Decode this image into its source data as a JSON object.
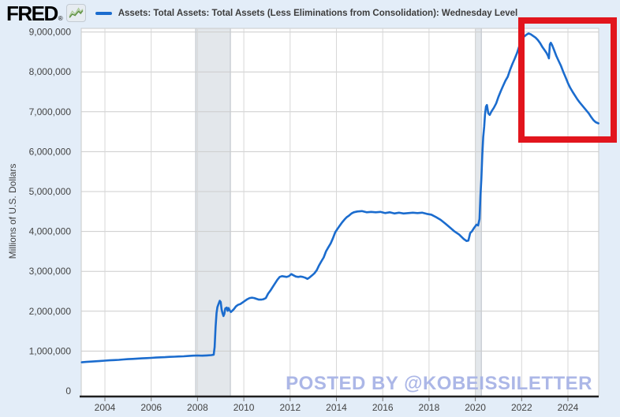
{
  "header": {
    "logo_text": "FRED",
    "registered_mark": "®",
    "series_legend": "Assets: Total Assets: Total Assets (Less Eliminations from Consolidation): Wednesday Level"
  },
  "watermark": {
    "text": "POSTED BY @KOBEISSILETTER",
    "color": "#a8b4e6"
  },
  "annotation": {
    "shape": "rectangle",
    "color": "#e2151d",
    "note": "highlights 2022-2025 balance sheet decline"
  },
  "colors": {
    "background": "#e3edf8",
    "plot_background": "#ffffff",
    "series_line": "#1b6cce",
    "recession_band": "#e3e7eb",
    "recession_band_edge": "#b9bfc6",
    "gridline": "#cccccc",
    "axis_line": "#1f1f1f",
    "tick_label": "#444444",
    "sparkline_green": "#5f9142"
  },
  "chart_data": {
    "type": "line",
    "title": "Assets: Total Assets: Total Assets (Less Eliminations from Consolidation): Wednesday Level",
    "xlabel": "",
    "ylabel": "Millions of U.S. Dollars",
    "x_range": [
      2003.0,
      2025.36
    ],
    "ylim": [
      0,
      9000000
    ],
    "grid": true,
    "legend_position": "top-left",
    "x_ticks": [
      2004,
      2006,
      2008,
      2010,
      2012,
      2014,
      2016,
      2018,
      2020,
      2022,
      2024
    ],
    "y_ticks": [
      [
        0,
        "0"
      ],
      [
        1000000,
        "1,000,000"
      ],
      [
        2000000,
        "2,000,000"
      ],
      [
        3000000,
        "3,000,000"
      ],
      [
        4000000,
        "4,000,000"
      ],
      [
        5000000,
        "5,000,000"
      ],
      [
        6000000,
        "6,000,000"
      ],
      [
        7000000,
        "7,000,000"
      ],
      [
        8000000,
        "8,000,000"
      ],
      [
        9000000,
        "9,000,000"
      ]
    ],
    "recession_bands": [
      {
        "start": 2007.92,
        "end": 2009.42
      },
      {
        "start": 2020.0,
        "end": 2020.26
      }
    ],
    "series": [
      {
        "name": "Assets: Total Assets: Total Assets (Less Eliminations from Consolidation): Wednesday Level",
        "color": "#1b6cce",
        "units": "Millions of U.S. Dollars",
        "points": [
          [
            2003.0,
            720000
          ],
          [
            2003.2,
            730000
          ],
          [
            2003.4,
            738000
          ],
          [
            2003.6,
            745000
          ],
          [
            2003.8,
            752000
          ],
          [
            2004.0,
            760000
          ],
          [
            2004.2,
            768000
          ],
          [
            2004.4,
            774000
          ],
          [
            2004.6,
            780000
          ],
          [
            2004.8,
            790000
          ],
          [
            2005.0,
            798000
          ],
          [
            2005.2,
            805000
          ],
          [
            2005.4,
            812000
          ],
          [
            2005.6,
            818000
          ],
          [
            2005.8,
            825000
          ],
          [
            2006.0,
            830000
          ],
          [
            2006.2,
            838000
          ],
          [
            2006.4,
            843000
          ],
          [
            2006.6,
            848000
          ],
          [
            2006.8,
            855000
          ],
          [
            2007.0,
            860000
          ],
          [
            2007.2,
            865000
          ],
          [
            2007.4,
            870000
          ],
          [
            2007.6,
            878000
          ],
          [
            2007.8,
            885000
          ],
          [
            2008.0,
            890000
          ],
          [
            2008.2,
            885000
          ],
          [
            2008.4,
            892000
          ],
          [
            2008.6,
            900000
          ],
          [
            2008.7,
            910000
          ],
          [
            2008.74,
            1100000
          ],
          [
            2008.78,
            1600000
          ],
          [
            2008.82,
            1950000
          ],
          [
            2008.86,
            2100000
          ],
          [
            2008.92,
            2200000
          ],
          [
            2008.96,
            2260000
          ],
          [
            2009.0,
            2230000
          ],
          [
            2009.04,
            2050000
          ],
          [
            2009.08,
            1950000
          ],
          [
            2009.12,
            1880000
          ],
          [
            2009.16,
            1930000
          ],
          [
            2009.2,
            2070000
          ],
          [
            2009.26,
            2090000
          ],
          [
            2009.3,
            2010000
          ],
          [
            2009.34,
            2080000
          ],
          [
            2009.38,
            2030000
          ],
          [
            2009.44,
            1980000
          ],
          [
            2009.5,
            2010000
          ],
          [
            2009.58,
            2060000
          ],
          [
            2009.66,
            2120000
          ],
          [
            2009.75,
            2160000
          ],
          [
            2009.85,
            2180000
          ],
          [
            2009.95,
            2220000
          ],
          [
            2010.05,
            2260000
          ],
          [
            2010.15,
            2300000
          ],
          [
            2010.25,
            2330000
          ],
          [
            2010.35,
            2340000
          ],
          [
            2010.45,
            2330000
          ],
          [
            2010.55,
            2310000
          ],
          [
            2010.65,
            2290000
          ],
          [
            2010.75,
            2290000
          ],
          [
            2010.85,
            2300000
          ],
          [
            2010.95,
            2330000
          ],
          [
            2011.05,
            2440000
          ],
          [
            2011.15,
            2520000
          ],
          [
            2011.25,
            2610000
          ],
          [
            2011.35,
            2700000
          ],
          [
            2011.45,
            2790000
          ],
          [
            2011.55,
            2860000
          ],
          [
            2011.65,
            2880000
          ],
          [
            2011.75,
            2870000
          ],
          [
            2011.85,
            2860000
          ],
          [
            2011.95,
            2880000
          ],
          [
            2012.05,
            2930000
          ],
          [
            2012.15,
            2900000
          ],
          [
            2012.25,
            2870000
          ],
          [
            2012.35,
            2860000
          ],
          [
            2012.45,
            2870000
          ],
          [
            2012.55,
            2860000
          ],
          [
            2012.65,
            2840000
          ],
          [
            2012.75,
            2810000
          ],
          [
            2012.85,
            2850000
          ],
          [
            2012.95,
            2900000
          ],
          [
            2013.05,
            2950000
          ],
          [
            2013.15,
            3030000
          ],
          [
            2013.25,
            3150000
          ],
          [
            2013.35,
            3250000
          ],
          [
            2013.45,
            3350000
          ],
          [
            2013.55,
            3500000
          ],
          [
            2013.65,
            3600000
          ],
          [
            2013.75,
            3700000
          ],
          [
            2013.85,
            3830000
          ],
          [
            2013.95,
            3980000
          ],
          [
            2014.05,
            4070000
          ],
          [
            2014.15,
            4150000
          ],
          [
            2014.25,
            4230000
          ],
          [
            2014.35,
            4300000
          ],
          [
            2014.45,
            4360000
          ],
          [
            2014.55,
            4400000
          ],
          [
            2014.65,
            4450000
          ],
          [
            2014.75,
            4480000
          ],
          [
            2014.9,
            4500000
          ],
          [
            2015.1,
            4510000
          ],
          [
            2015.3,
            4480000
          ],
          [
            2015.5,
            4490000
          ],
          [
            2015.7,
            4480000
          ],
          [
            2015.9,
            4490000
          ],
          [
            2016.1,
            4460000
          ],
          [
            2016.3,
            4480000
          ],
          [
            2016.5,
            4450000
          ],
          [
            2016.7,
            4470000
          ],
          [
            2016.9,
            4450000
          ],
          [
            2017.1,
            4460000
          ],
          [
            2017.3,
            4470000
          ],
          [
            2017.5,
            4460000
          ],
          [
            2017.7,
            4470000
          ],
          [
            2017.9,
            4440000
          ],
          [
            2018.1,
            4420000
          ],
          [
            2018.3,
            4360000
          ],
          [
            2018.5,
            4290000
          ],
          [
            2018.7,
            4200000
          ],
          [
            2018.9,
            4100000
          ],
          [
            2019.1,
            4000000
          ],
          [
            2019.3,
            3920000
          ],
          [
            2019.5,
            3810000
          ],
          [
            2019.62,
            3760000
          ],
          [
            2019.7,
            3770000
          ],
          [
            2019.78,
            3960000
          ],
          [
            2019.85,
            4000000
          ],
          [
            2019.95,
            4090000
          ],
          [
            2020.05,
            4170000
          ],
          [
            2020.12,
            4150000
          ],
          [
            2020.18,
            4310000
          ],
          [
            2020.22,
            4900000
          ],
          [
            2020.26,
            5300000
          ],
          [
            2020.3,
            5900000
          ],
          [
            2020.34,
            6370000
          ],
          [
            2020.38,
            6620000
          ],
          [
            2020.42,
            6940000
          ],
          [
            2020.46,
            7130000
          ],
          [
            2020.5,
            7170000
          ],
          [
            2020.56,
            6960000
          ],
          [
            2020.62,
            6920000
          ],
          [
            2020.7,
            7010000
          ],
          [
            2020.8,
            7100000
          ],
          [
            2020.9,
            7210000
          ],
          [
            2021.0,
            7380000
          ],
          [
            2021.1,
            7520000
          ],
          [
            2021.2,
            7650000
          ],
          [
            2021.3,
            7780000
          ],
          [
            2021.4,
            7880000
          ],
          [
            2021.5,
            8050000
          ],
          [
            2021.6,
            8200000
          ],
          [
            2021.7,
            8330000
          ],
          [
            2021.8,
            8470000
          ],
          [
            2021.9,
            8650000
          ],
          [
            2022.0,
            8790000
          ],
          [
            2022.1,
            8880000
          ],
          [
            2022.2,
            8930000
          ],
          [
            2022.3,
            8965000
          ],
          [
            2022.4,
            8940000
          ],
          [
            2022.5,
            8900000
          ],
          [
            2022.6,
            8860000
          ],
          [
            2022.7,
            8800000
          ],
          [
            2022.8,
            8720000
          ],
          [
            2022.9,
            8620000
          ],
          [
            2023.0,
            8540000
          ],
          [
            2023.08,
            8470000
          ],
          [
            2023.14,
            8400000
          ],
          [
            2023.18,
            8340000
          ],
          [
            2023.22,
            8690000
          ],
          [
            2023.26,
            8730000
          ],
          [
            2023.32,
            8670000
          ],
          [
            2023.4,
            8550000
          ],
          [
            2023.5,
            8400000
          ],
          [
            2023.6,
            8270000
          ],
          [
            2023.7,
            8150000
          ],
          [
            2023.8,
            8000000
          ],
          [
            2023.9,
            7860000
          ],
          [
            2024.0,
            7720000
          ],
          [
            2024.1,
            7600000
          ],
          [
            2024.2,
            7500000
          ],
          [
            2024.3,
            7410000
          ],
          [
            2024.4,
            7320000
          ],
          [
            2024.5,
            7240000
          ],
          [
            2024.6,
            7170000
          ],
          [
            2024.7,
            7100000
          ],
          [
            2024.8,
            7030000
          ],
          [
            2024.9,
            6960000
          ],
          [
            2025.0,
            6870000
          ],
          [
            2025.1,
            6790000
          ],
          [
            2025.2,
            6740000
          ],
          [
            2025.32,
            6710000
          ]
        ]
      }
    ]
  }
}
